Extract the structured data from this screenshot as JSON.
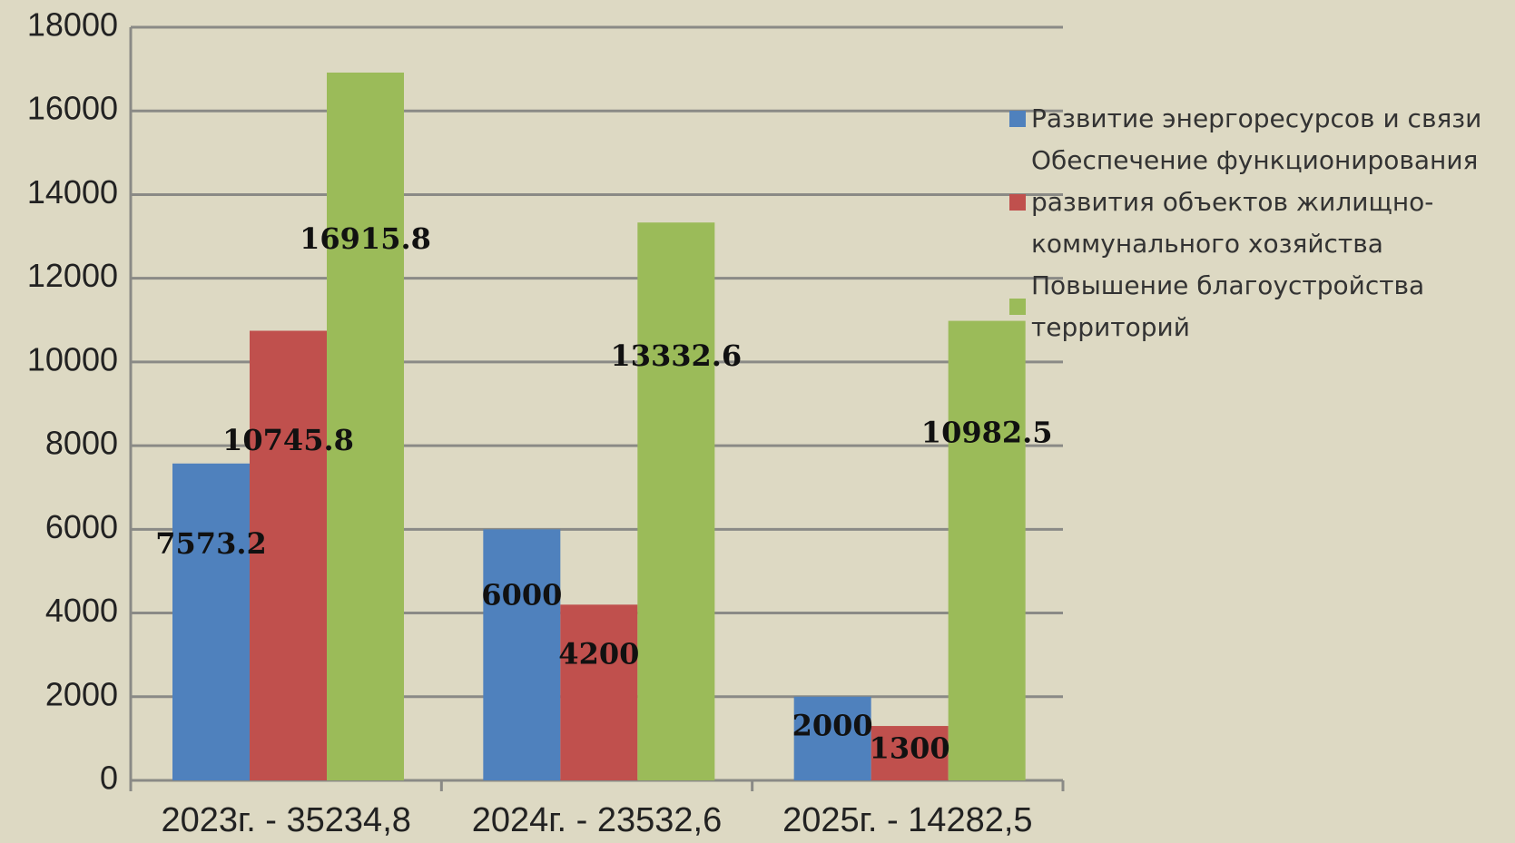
{
  "chart_data": {
    "type": "bar",
    "categories": [
      "2023г. - 35234,8",
      "2024г. - 23532,6",
      "2025г. - 14282,5"
    ],
    "series": [
      {
        "name": "Развитие энергоресурсов и связи",
        "color": "#4f81bd",
        "values": [
          7573.2,
          6000,
          2000
        ]
      },
      {
        "name": "Обеспечение функционирования развития объектов жилищно-коммунального хозяйства",
        "color": "#c0504d",
        "values": [
          10745.8,
          4200,
          1300
        ]
      },
      {
        "name": "Повышение благоустройства территорий",
        "color": "#9bbb59",
        "values": [
          16915.8,
          13332.6,
          10982.5
        ]
      }
    ],
    "ylim": [
      0,
      18000
    ],
    "yticks": [
      0,
      2000,
      4000,
      6000,
      8000,
      10000,
      12000,
      14000,
      16000,
      18000
    ],
    "grid": true,
    "legend": "right"
  }
}
